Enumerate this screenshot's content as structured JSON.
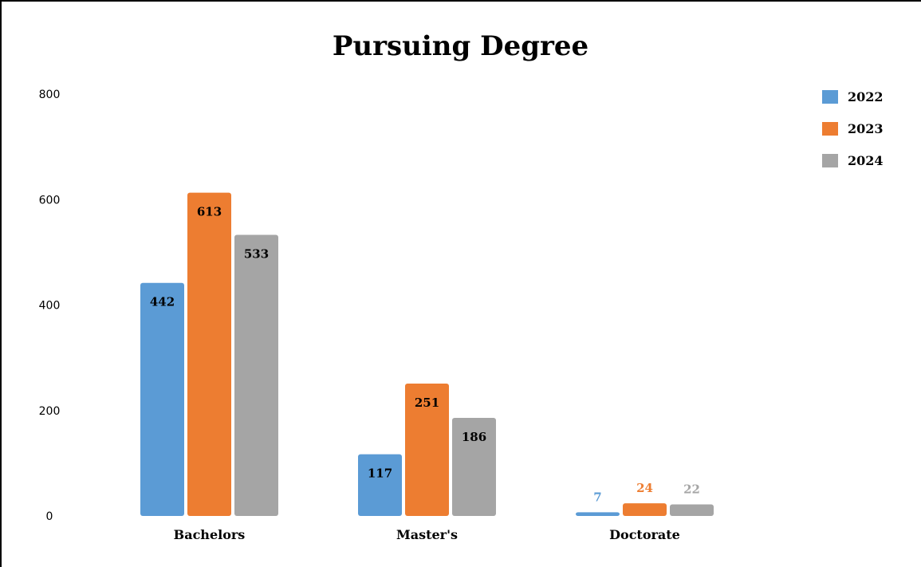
{
  "chart_data": {
    "type": "bar",
    "title": "Pursuing Degree",
    "categories": [
      "Bachelors",
      "Master's",
      "Doctorate"
    ],
    "series": [
      {
        "name": "2022",
        "color": "#5b9bd5",
        "values": [
          442,
          117,
          7
        ]
      },
      {
        "name": "2023",
        "color": "#ed7d31",
        "values": [
          613,
          251,
          24
        ]
      },
      {
        "name": "2024",
        "color": "#a5a5a5",
        "values": [
          533,
          186,
          22
        ]
      }
    ],
    "yticks": [
      "0",
      "200",
      "400",
      "600",
      "800"
    ],
    "ylim": [
      0,
      800
    ],
    "grid": false,
    "legend_position": "top-right",
    "xlabel": "",
    "ylabel": ""
  }
}
